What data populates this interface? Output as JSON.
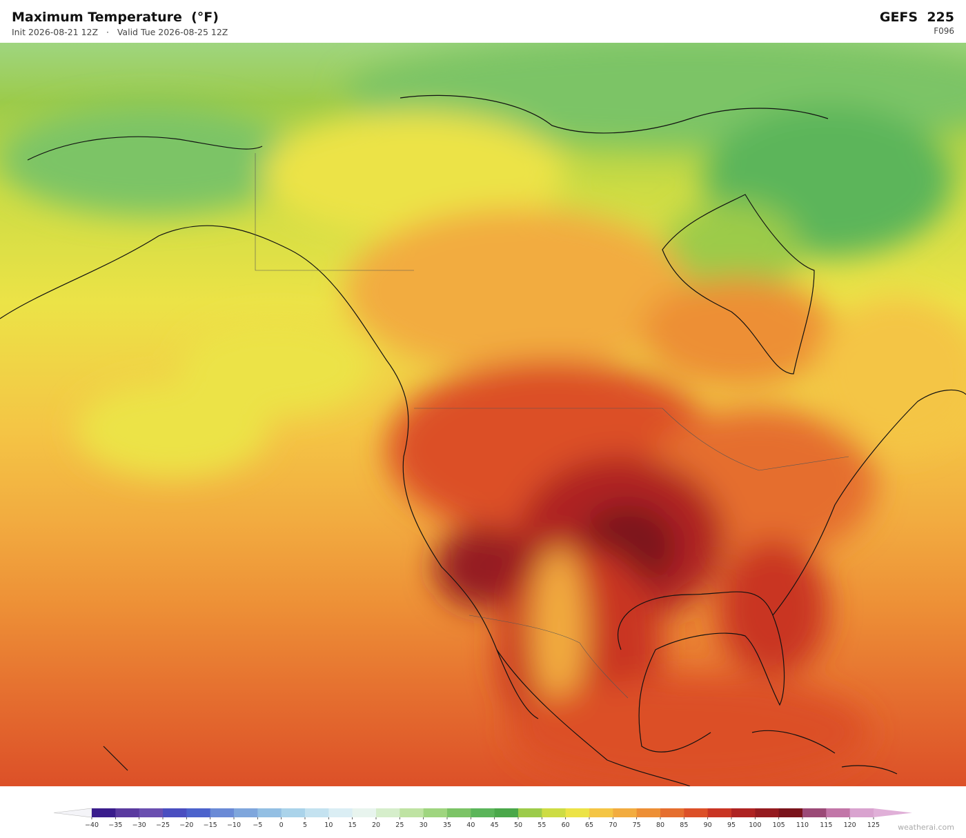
{
  "header": {
    "title": "Maximum Temperature  (°F)",
    "subtitle": "Init 2026-08-21 12Z   ·   Valid Tue 2026-08-25 12Z",
    "model": "GEFS  225",
    "forecast_hour": "F096"
  },
  "colorbar": {
    "ticks": [
      {
        "value": -40,
        "label": "−40"
      },
      {
        "value": -35,
        "label": "−35"
      },
      {
        "value": -30,
        "label": "−30"
      },
      {
        "value": -25,
        "label": "−25"
      },
      {
        "value": -20,
        "label": "−20"
      },
      {
        "value": -15,
        "label": "−15"
      },
      {
        "value": -10,
        "label": "−10"
      },
      {
        "value": -5,
        "label": "−5"
      },
      0,
      5,
      10,
      15,
      20,
      25,
      30,
      35,
      40,
      45,
      50,
      55,
      60,
      65,
      70,
      75,
      80,
      85,
      90,
      95,
      100,
      105,
      110,
      115,
      120,
      125
    ],
    "colors": [
      "#3a1d8c",
      "#5a3a9f",
      "#6a4fb0",
      "#4a4ec0",
      "#4c63cc",
      "#6a8ad6",
      "#7fa6dc",
      "#93bfe3",
      "#aad3ea",
      "#c4e2f0",
      "#dbeef4",
      "#e8f4ee",
      "#d6eecb",
      "#bfe3a3",
      "#9fd57f",
      "#7cc466",
      "#5bb55a",
      "#4aa84a",
      "#9ccb4a",
      "#cddc44",
      "#ece347",
      "#f4c545",
      "#f2ac40",
      "#ed8f36",
      "#e56e2f",
      "#dc5028",
      "#c93524",
      "#ae2322",
      "#951b20",
      "#7a141c",
      "#9b4a77",
      "#c276a8",
      "#d9a3cf"
    ],
    "under_color": "#f4f4f8",
    "over_color": "#e0b0d8"
  },
  "watermark": "weatherai.com"
}
